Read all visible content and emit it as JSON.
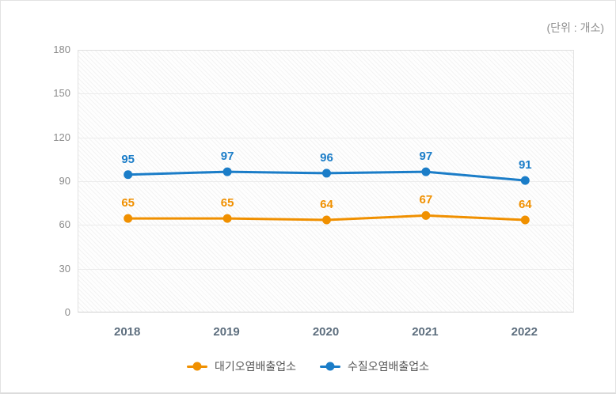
{
  "panel": {
    "unit_label": "(단위 : 개소)"
  },
  "chart_data": {
    "type": "line",
    "title": "",
    "unit": "(단위 : 개소)",
    "x": [
      "2018",
      "2019",
      "2020",
      "2021",
      "2022"
    ],
    "series": [
      {
        "name": "대기오염배출업소",
        "color": "#f09000",
        "values": [
          65,
          65,
          64,
          67,
          64
        ]
      },
      {
        "name": "수질오염배출업소",
        "color": "#1b7dc8",
        "values": [
          95,
          97,
          96,
          97,
          91
        ]
      }
    ],
    "ylim": [
      0,
      180
    ],
    "yticks": [
      0,
      30,
      60,
      90,
      120,
      150,
      180
    ],
    "grid": "horizontal",
    "legend_position": "bottom"
  },
  "colors": {
    "air_series": "#f09000",
    "water_series": "#1b7dc8",
    "axis_text": "#8b8b8b",
    "x_axis_text": "#5d6e7e",
    "gridline": "#ececec",
    "legend_text": "#585858",
    "unit_text": "#8f8f8f"
  }
}
